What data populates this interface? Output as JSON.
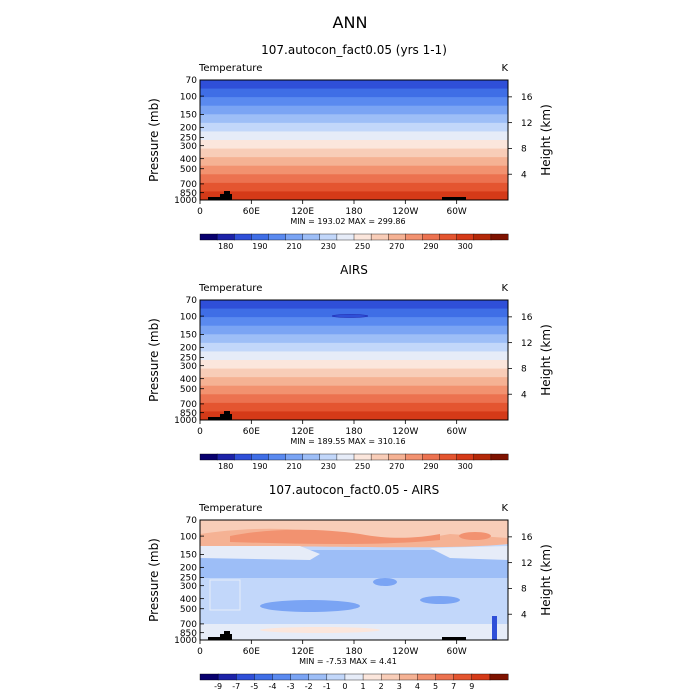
{
  "figure_title": "ANN",
  "chart_data": [
    {
      "type": "heatmap",
      "title": "107.autocon_fact0.05 (yrs 1-1)",
      "variable_label": "Temperature",
      "units_label": "K",
      "ylabel": "Pressure (mb)",
      "ylabel_right": "Height (km)",
      "pressure_ticks": [
        "70",
        "100",
        "150",
        "200",
        "250",
        "300",
        "400",
        "500",
        "700",
        "850",
        "1000"
      ],
      "height_ticks": [
        "16",
        "12",
        "8",
        "4"
      ],
      "x_ticks": [
        "0",
        "60E",
        "120E",
        "180",
        "120W",
        "60W"
      ],
      "stats_text": "MIN = 193.02   MAX = 299.86",
      "colorbar_labels": [
        "180",
        "190",
        "210",
        "230",
        "250",
        "270",
        "290",
        "300"
      ],
      "colorbar_colors": [
        "#08006e",
        "#1c22a8",
        "#2f4fd8",
        "#3f6ee6",
        "#5a8af0",
        "#7aa4f4",
        "#9dbef7",
        "#c2d7fa",
        "#e6ecf8",
        "#fbe6dc",
        "#f8cdb8",
        "#f5b294",
        "#f29270",
        "#ec7250",
        "#e45530",
        "#d53a18",
        "#b42808",
        "#7e1200"
      ],
      "band_colors": [
        "#2f4fd8",
        "#3f6ee6",
        "#5a8af0",
        "#7aa4f4",
        "#9dbef7",
        "#c2d7fa",
        "#e6ecf8",
        "#fbe6dc",
        "#f8cdb8",
        "#f5b294",
        "#f29270",
        "#ec7250",
        "#e45530",
        "#d53a18"
      ]
    },
    {
      "type": "heatmap",
      "title": "AIRS",
      "variable_label": "Temperature",
      "units_label": "K",
      "ylabel": "Pressure (mb)",
      "ylabel_right": "Height (km)",
      "pressure_ticks": [
        "70",
        "100",
        "150",
        "200",
        "250",
        "300",
        "400",
        "500",
        "700",
        "850",
        "1000"
      ],
      "height_ticks": [
        "16",
        "12",
        "8",
        "4"
      ],
      "x_ticks": [
        "0",
        "60E",
        "120E",
        "180",
        "120W",
        "60W"
      ],
      "stats_text": "MIN = 189.55   MAX = 310.16",
      "colorbar_labels": [
        "180",
        "190",
        "210",
        "230",
        "250",
        "270",
        "290",
        "300"
      ],
      "colorbar_colors": [
        "#08006e",
        "#1c22a8",
        "#2f4fd8",
        "#3f6ee6",
        "#5a8af0",
        "#7aa4f4",
        "#9dbef7",
        "#c2d7fa",
        "#e6ecf8",
        "#fbe6dc",
        "#f8cdb8",
        "#f5b294",
        "#f29270",
        "#ec7250",
        "#e45530",
        "#d53a18",
        "#b42808",
        "#7e1200"
      ],
      "band_colors": [
        "#2f4fd8",
        "#3f6ee6",
        "#5a8af0",
        "#7aa4f4",
        "#9dbef7",
        "#c2d7fa",
        "#e6ecf8",
        "#fbe6dc",
        "#f8cdb8",
        "#f5b294",
        "#f29270",
        "#ec7250",
        "#e45530",
        "#d53a18"
      ]
    },
    {
      "type": "heatmap",
      "title": "107.autocon_fact0.05 - AIRS",
      "variable_label": "Temperature",
      "units_label": "K",
      "ylabel": "Pressure (mb)",
      "ylabel_right": "Height (km)",
      "pressure_ticks": [
        "70",
        "100",
        "150",
        "200",
        "250",
        "300",
        "400",
        "500",
        "700",
        "850",
        "1000"
      ],
      "height_ticks": [
        "16",
        "12",
        "8",
        "4"
      ],
      "x_ticks": [
        "0",
        "60E",
        "120E",
        "180",
        "120W",
        "60W"
      ],
      "stats_text": "MIN =  -7.53   MAX =   4.41",
      "colorbar_labels": [
        "-9",
        "-7",
        "-5",
        "-4",
        "-3",
        "-2",
        "-1",
        "0",
        "1",
        "2",
        "3",
        "4",
        "5",
        "7",
        "9"
      ],
      "colorbar_colors": [
        "#08006e",
        "#1c22a8",
        "#2f4fd8",
        "#3f6ee6",
        "#5a8af0",
        "#7aa4f4",
        "#9dbef7",
        "#c2d7fa",
        "#e6ecf8",
        "#fbe6dc",
        "#f8cdb8",
        "#f5b294",
        "#f29270",
        "#ec7250",
        "#e45530",
        "#d53a18",
        "#7e1200"
      ],
      "diff_background": "#c2d7fa"
    }
  ]
}
